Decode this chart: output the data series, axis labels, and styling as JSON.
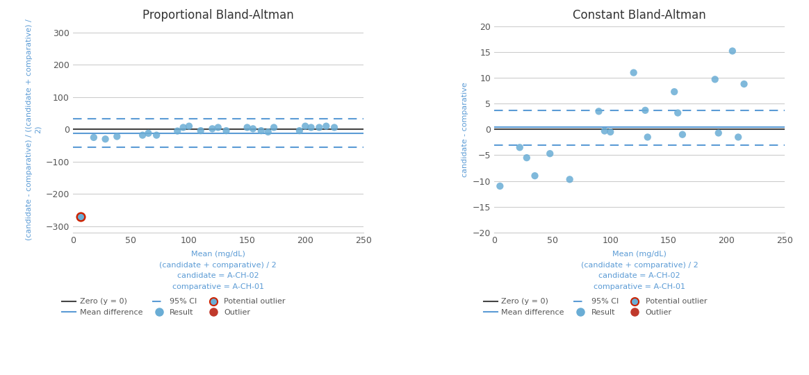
{
  "plot1": {
    "title": "Proportional Bland-Altman",
    "ylabel": "(candidate - comparative) / ((candidate + comparative) /\n2)",
    "xlabel": "Mean (mg/dL)\n(candidate + comparative) / 2\ncandidate = A-CH-02\ncomparative = A-CH-01",
    "xlim": [
      0,
      250
    ],
    "ylim": [
      -320,
      320
    ],
    "yticks": [
      -300,
      -200,
      -100,
      0,
      100,
      200,
      300
    ],
    "xticks": [
      0,
      50,
      100,
      150,
      200,
      250
    ],
    "zero_line": 0,
    "mean_diff": -12,
    "ci_upper": 32,
    "ci_lower": -56,
    "points_x": [
      18,
      28,
      38,
      60,
      65,
      72,
      90,
      95,
      100,
      110,
      120,
      125,
      132,
      150,
      155,
      162,
      168,
      173,
      195,
      200,
      205,
      212,
      218,
      225
    ],
    "points_y": [
      -25,
      -30,
      -22,
      -18,
      -12,
      -18,
      -5,
      6,
      10,
      -4,
      2,
      6,
      -4,
      6,
      2,
      -4,
      -8,
      6,
      -4,
      10,
      6,
      6,
      10,
      6
    ],
    "outlier_x": [
      7
    ],
    "outlier_y": [
      -270
    ],
    "potential_outlier_x": [],
    "potential_outlier_y": []
  },
  "plot2": {
    "title": "Constant Bland-Altman",
    "ylabel": "candidate - comparative",
    "xlabel": "Mean (mg/dL)\n(candidate + comparative) / 2\ncandidate = A-CH-02\ncomparative = A-CH-01",
    "xlim": [
      0,
      250
    ],
    "ylim": [
      -20,
      20
    ],
    "yticks": [
      -20,
      -15,
      -10,
      -5,
      0,
      5,
      10,
      15,
      20
    ],
    "xticks": [
      0,
      50,
      100,
      150,
      200,
      250
    ],
    "zero_line": 0,
    "mean_diff": 0.5,
    "ci_upper": 3.7,
    "ci_lower": -3.0,
    "points_x": [
      5,
      22,
      28,
      35,
      48,
      65,
      90,
      95,
      100,
      120,
      130,
      132,
      155,
      158,
      162,
      190,
      193,
      205,
      210,
      215
    ],
    "points_y": [
      -11,
      -3.5,
      -5.5,
      -9.0,
      -4.7,
      -9.7,
      3.5,
      -0.3,
      -0.5,
      11,
      3.7,
      -1.5,
      7.3,
      3.2,
      -1.0,
      9.7,
      -0.7,
      15.2,
      -1.5,
      8.8
    ],
    "outlier_x": [],
    "outlier_y": [],
    "potential_outlier_x": [],
    "potential_outlier_y": []
  },
  "colors": {
    "point_fill": "#6aadd5",
    "point_edge": "#6aadd5",
    "zero_line": "#444444",
    "mean_line": "#5b9bd5",
    "ci_line": "#5b9bd5",
    "outlier_ring": "#cc2200",
    "outlier_fill": "#c0392b",
    "grid": "#cccccc",
    "text_color": "#555555",
    "xlabel_color": "#5b9bd5",
    "ylabel_color": "#5b9bd5",
    "background": "#ffffff"
  },
  "legend": {
    "row1": [
      "Zero (y = 0)",
      "Mean difference",
      "95% CI"
    ],
    "row2": [
      "Result",
      "Potential outlier",
      "Outlier"
    ]
  }
}
